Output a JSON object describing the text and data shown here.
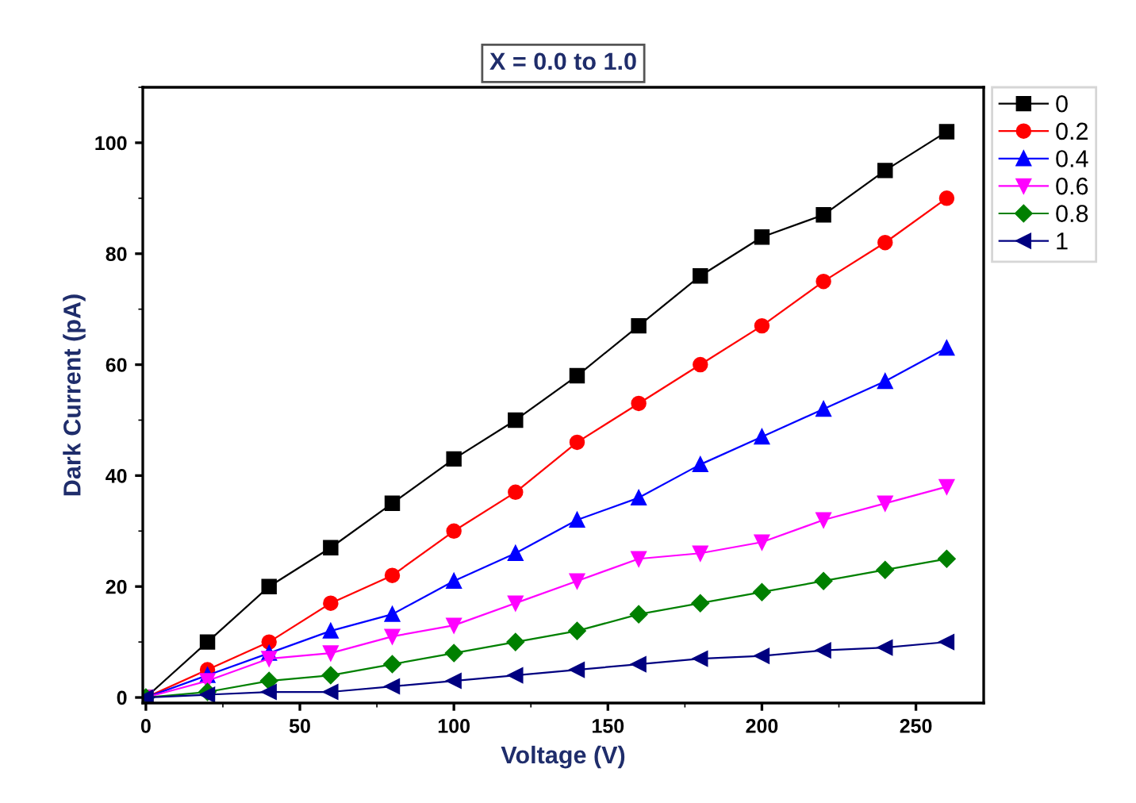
{
  "chart_data": {
    "type": "line",
    "title": "X = 0.0 to 1.0",
    "xlabel": "Voltage (V)",
    "ylabel": "Dark Current (pA)",
    "x": [
      0,
      20,
      40,
      60,
      80,
      100,
      120,
      140,
      160,
      180,
      200,
      220,
      240,
      260
    ],
    "series": [
      {
        "name": "0",
        "color": "#000000",
        "marker": "square",
        "values": [
          0,
          10,
          20,
          27,
          35,
          43,
          50,
          58,
          67,
          76,
          83,
          87,
          95,
          102
        ]
      },
      {
        "name": "0.2",
        "color": "#ff0000",
        "marker": "circle",
        "values": [
          0,
          5,
          10,
          17,
          22,
          30,
          37,
          46,
          53,
          60,
          67,
          75,
          82,
          90
        ]
      },
      {
        "name": "0.4",
        "color": "#0000ff",
        "marker": "triangle",
        "values": [
          0,
          4,
          8,
          12,
          15,
          21,
          26,
          32,
          36,
          42,
          47,
          52,
          57,
          63
        ]
      },
      {
        "name": "0.6",
        "color": "#ff00ff",
        "marker": "triangle_down",
        "values": [
          0,
          3,
          7,
          8,
          11,
          13,
          17,
          21,
          25,
          26,
          28,
          32,
          35,
          38
        ]
      },
      {
        "name": "0.8",
        "color": "#008000",
        "marker": "diamond",
        "values": [
          0,
          1,
          3,
          4,
          6,
          8,
          10,
          12,
          15,
          17,
          19,
          21,
          23,
          25
        ]
      },
      {
        "name": "1",
        "color": "#000080",
        "marker": "triangle_left",
        "values": [
          0,
          0.5,
          1,
          1,
          2,
          3,
          4,
          5,
          6,
          7,
          7.5,
          8.5,
          9,
          10
        ]
      }
    ],
    "xlim": [
      -1,
      272
    ],
    "ylim": [
      -1,
      110
    ],
    "xticks": [
      0,
      50,
      100,
      150,
      200,
      250
    ],
    "yticks": [
      0,
      20,
      40,
      60,
      80,
      100
    ],
    "grid": false,
    "legend": "top right",
    "line_style": "solid"
  }
}
